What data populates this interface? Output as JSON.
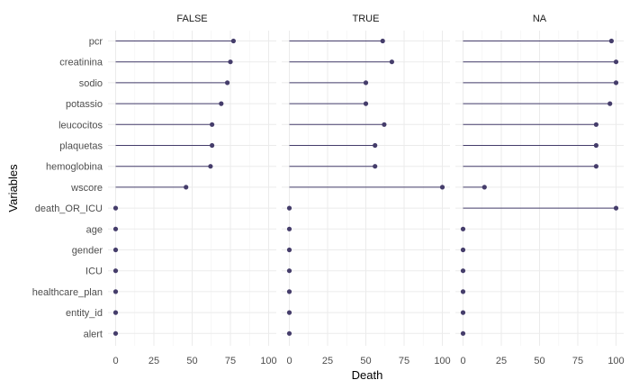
{
  "chart_data": {
    "type": "lollipop",
    "xlabel": "Death",
    "ylabel": "Variables",
    "xlim": [
      0,
      100
    ],
    "x_ticks": [
      0,
      25,
      50,
      75,
      100
    ],
    "grid": true,
    "colors": {
      "mark": "#453d6b",
      "stem": "#453d6b",
      "grid": "#ebebeb"
    },
    "variables": [
      "pcr",
      "creatinina",
      "sodio",
      "potassio",
      "leucocitos",
      "plaquetas",
      "hemoglobina",
      "wscore",
      "death_OR_ICU",
      "age",
      "gender",
      "ICU",
      "healthcare_plan",
      "entity_id",
      "alert"
    ],
    "panels": [
      {
        "label": "FALSE",
        "values": [
          77,
          75,
          73,
          69,
          63,
          63,
          62,
          46,
          0,
          0,
          0,
          0,
          0,
          0,
          0
        ]
      },
      {
        "label": "TRUE",
        "values": [
          61,
          67,
          50,
          50,
          62,
          56,
          56,
          100,
          0,
          0,
          0,
          0,
          0,
          0,
          0
        ]
      },
      {
        "label": "NA",
        "values": [
          97,
          100,
          100,
          96,
          87,
          87,
          87,
          14,
          100,
          0,
          0,
          0,
          0,
          0,
          0
        ]
      }
    ]
  }
}
